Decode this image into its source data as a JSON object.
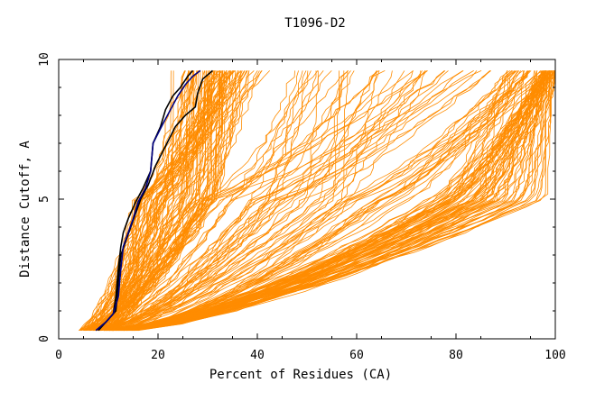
{
  "chart_data": {
    "type": "line",
    "title": "T1096-D2",
    "xlabel": "Percent of Residues (CA)",
    "ylabel": "Distance Cutoff, A",
    "xlim": [
      0,
      100
    ],
    "ylim": [
      0,
      10
    ],
    "x_ticks": [
      0,
      20,
      40,
      60,
      80,
      100
    ],
    "y_ticks": [
      0,
      5,
      10
    ],
    "grid": false,
    "legend": "none",
    "colors": {
      "background_curves": "#ff8c00",
      "highlight_black": "#000000",
      "highlight_navy": "#00007f",
      "axes": "#000000"
    },
    "series": [
      {
        "role": "highlight-black",
        "points": [
          [
            8,
            0.3
          ],
          [
            10,
            0.7
          ],
          [
            11.5,
            1
          ],
          [
            12,
            2
          ],
          [
            12.5,
            3
          ],
          [
            13.5,
            3.5
          ],
          [
            14.5,
            4
          ],
          [
            15.5,
            4.5
          ],
          [
            16.5,
            5
          ],
          [
            18,
            5.5
          ],
          [
            19.5,
            6.2
          ],
          [
            21.5,
            6.9
          ],
          [
            23.5,
            7.6
          ],
          [
            25.5,
            8
          ],
          [
            27.5,
            8.3
          ],
          [
            28,
            8.8
          ],
          [
            29,
            9.3
          ],
          [
            31,
            9.6
          ]
        ]
      },
      {
        "role": "highlight-black",
        "points": [
          [
            7.5,
            0.3
          ],
          [
            9.5,
            0.6
          ],
          [
            11,
            0.9
          ],
          [
            11.5,
            1.5
          ],
          [
            12,
            2.5
          ],
          [
            12.5,
            3.3
          ],
          [
            13,
            3.8
          ],
          [
            14,
            4.3
          ],
          [
            15.5,
            4.9
          ],
          [
            17,
            5.4
          ],
          [
            18.5,
            6
          ],
          [
            19,
            7
          ],
          [
            20.5,
            7.6
          ],
          [
            21.5,
            8.2
          ],
          [
            23,
            8.7
          ],
          [
            24.5,
            9
          ],
          [
            26,
            9.4
          ],
          [
            27,
            9.6
          ]
        ]
      },
      {
        "role": "highlight-navy",
        "points": [
          [
            7.5,
            0.3
          ],
          [
            9.5,
            0.6
          ],
          [
            11,
            0.9
          ],
          [
            12,
            1.5
          ],
          [
            12.5,
            2.5
          ],
          [
            13,
            3.3
          ],
          [
            14,
            3.8
          ],
          [
            15,
            4.3
          ],
          [
            16,
            4.9
          ],
          [
            17.5,
            5.4
          ],
          [
            18.5,
            6
          ],
          [
            19,
            7
          ],
          [
            21,
            7.7
          ],
          [
            22.5,
            8.2
          ],
          [
            24,
            8.7
          ],
          [
            25.5,
            9.1
          ],
          [
            27,
            9.4
          ],
          [
            28.5,
            9.6
          ]
        ]
      }
    ],
    "background_curve_groups": [
      {
        "name": "steep",
        "count": 90,
        "x_at_low": [
          4,
          11
        ],
        "x_at_mid": [
          15,
          32
        ],
        "x_at_high": [
          21,
          42
        ]
      },
      {
        "name": "medium",
        "count": 45,
        "x_at_low": [
          6,
          13
        ],
        "x_at_mid": [
          28,
          58
        ],
        "x_at_high": [
          45,
          88
        ]
      },
      {
        "name": "near-complete",
        "count": 55,
        "x_at_low": [
          9,
          15
        ],
        "x_at_mid": [
          74,
          98
        ],
        "x_at_high": [
          97,
          100
        ]
      },
      {
        "name": "shallow",
        "count": 40,
        "x_at_low": [
          8,
          16
        ],
        "x_at_mid": [
          55,
          92
        ],
        "x_at_high": [
          90,
          100
        ]
      }
    ]
  }
}
